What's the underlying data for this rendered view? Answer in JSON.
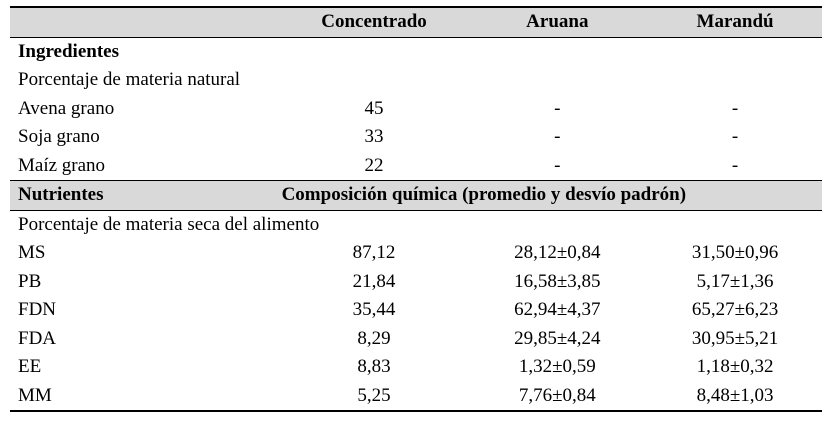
{
  "header": {
    "col1": "",
    "col2": "Concentrado",
    "col3": "Aruana",
    "col4": "Marandú"
  },
  "ingredients": {
    "title": "Ingredientes",
    "subtitle": "Porcentaje de materia natural",
    "rows": [
      {
        "name": "Avena grano",
        "concentrado": "45",
        "aruana": "-",
        "marandu": "-"
      },
      {
        "name": "Soja grano",
        "concentrado": "33",
        "aruana": "-",
        "marandu": "-"
      },
      {
        "name": "Maíz grano",
        "concentrado": "22",
        "aruana": "-",
        "marandu": "-"
      }
    ]
  },
  "nutrients": {
    "title": "Nutrientes",
    "composition_header": "Composición química (promedio y desvío padrón)",
    "subtitle": "Porcentaje de materia seca del alimento",
    "rows": [
      {
        "name": "MS",
        "concentrado": "87,12",
        "aruana": "28,12±0,84",
        "marandu": "31,50±0,96"
      },
      {
        "name": "PB",
        "concentrado": "21,84",
        "aruana": "16,58±3,85",
        "marandu": "5,17±1,36"
      },
      {
        "name": "FDN",
        "concentrado": "35,44",
        "aruana": "62,94±4,37",
        "marandu": "65,27±6,23"
      },
      {
        "name": "FDA",
        "concentrado": "8,29",
        "aruana": "29,85±4,24",
        "marandu": "30,95±5,21"
      },
      {
        "name": "EE",
        "concentrado": "8,83",
        "aruana": "1,32±0,59",
        "marandu": "1,18±0,32"
      },
      {
        "name": "MM",
        "concentrado": "5,25",
        "aruana": "7,76±0,84",
        "marandu": "8,48±1,03"
      }
    ]
  }
}
